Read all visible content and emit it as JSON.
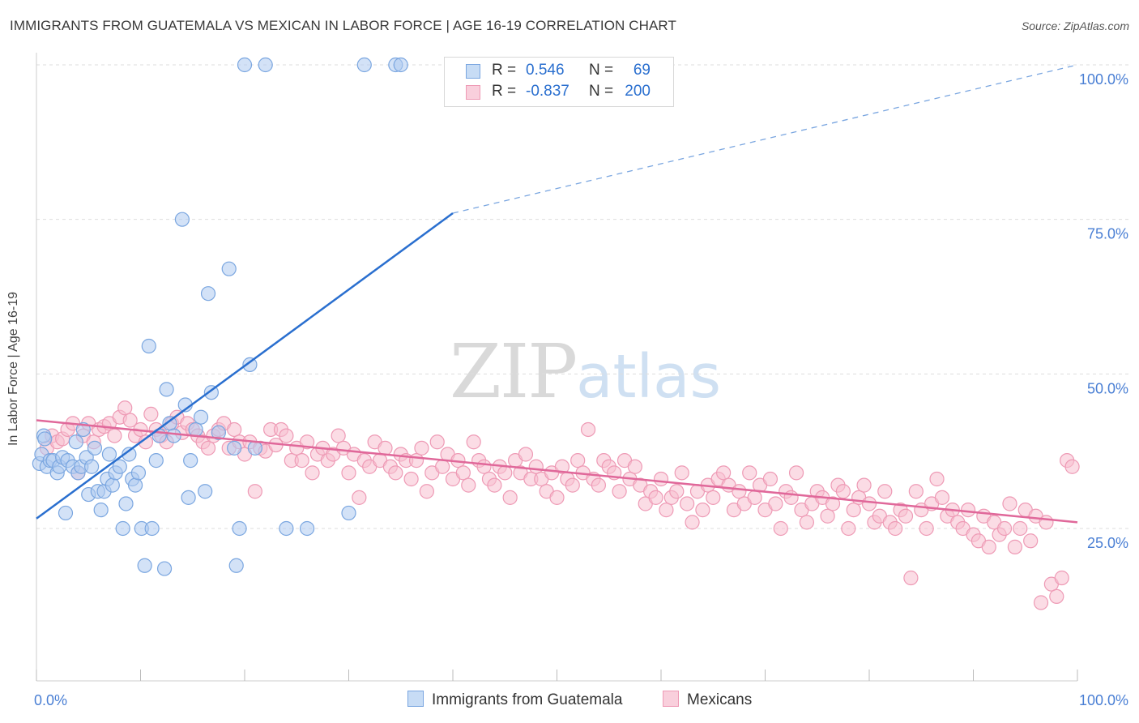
{
  "title": "IMMIGRANTS FROM GUATEMALA VS MEXICAN IN LABOR FORCE | AGE 16-19 CORRELATION CHART",
  "source": "Source: ZipAtlas.com",
  "watermark": {
    "zip": "ZIP",
    "atlas": "atlas"
  },
  "legend_top": [
    {
      "r_label": "R =",
      "r_value": "0.546",
      "n_label": "N =",
      "n_value": "69"
    },
    {
      "r_label": "R =",
      "r_value": "-0.837",
      "n_label": "N =",
      "n_value": "200"
    }
  ],
  "colors": {
    "blue_fill": "#aecbf0",
    "blue_stroke": "#7aa6e0",
    "blue_line": "#2a6fcf",
    "pink_fill": "#f7bfd0",
    "pink_stroke": "#ee9ab5",
    "pink_line": "#e0689a",
    "tick_text": "#4a7fd4",
    "grid": "#dddddd"
  },
  "chart_data": {
    "type": "scatter",
    "title": "IMMIGRANTS FROM GUATEMALA VS MEXICAN IN LABOR FORCE | AGE 16-19 CORRELATION CHART",
    "xlabel": "",
    "ylabel": "In Labor Force | Age 16-19",
    "xlim": [
      0,
      100
    ],
    "ylim": [
      0,
      105
    ],
    "x_tick_labels": [
      "0.0%",
      "100.0%"
    ],
    "y_ticks": [
      25,
      50,
      75,
      100
    ],
    "y_tick_labels": [
      "25.0%",
      "50.0%",
      "75.0%",
      "100.0%"
    ],
    "grid": true,
    "legend_position": "bottom",
    "series": [
      {
        "name": "Immigrants from Guatemala",
        "color": "#aecbf0",
        "r": 0.546,
        "n": 69,
        "trend": {
          "x": [
            0,
            40
          ],
          "y": [
            26.6,
            76
          ],
          "dashed_to": [
            100,
            100
          ]
        },
        "points": [
          [
            0.3,
            35.5
          ],
          [
            0.5,
            37
          ],
          [
            0.7,
            40
          ],
          [
            0.8,
            39.5
          ],
          [
            1,
            35
          ],
          [
            1.3,
            36
          ],
          [
            1.6,
            36
          ],
          [
            2,
            34
          ],
          [
            2.2,
            35
          ],
          [
            2.5,
            36.5
          ],
          [
            2.8,
            27.5
          ],
          [
            3,
            36
          ],
          [
            3.5,
            35
          ],
          [
            3.8,
            39
          ],
          [
            4,
            34
          ],
          [
            4.3,
            35
          ],
          [
            4.5,
            41
          ],
          [
            4.8,
            36.5
          ],
          [
            5,
            30.5
          ],
          [
            5.3,
            35
          ],
          [
            5.6,
            38
          ],
          [
            5.9,
            31
          ],
          [
            6.2,
            28
          ],
          [
            6.5,
            31
          ],
          [
            6.8,
            33
          ],
          [
            7,
            37
          ],
          [
            7.3,
            32
          ],
          [
            7.6,
            34
          ],
          [
            8,
            35
          ],
          [
            8.3,
            25
          ],
          [
            8.6,
            29
          ],
          [
            8.9,
            37
          ],
          [
            9.2,
            33
          ],
          [
            9.5,
            32
          ],
          [
            9.8,
            34
          ],
          [
            10.1,
            25
          ],
          [
            10.4,
            19
          ],
          [
            10.8,
            54.5
          ],
          [
            11.1,
            25
          ],
          [
            11.5,
            36
          ],
          [
            11.8,
            40
          ],
          [
            12.3,
            18.5
          ],
          [
            12.5,
            47.5
          ],
          [
            12.8,
            42
          ],
          [
            13.2,
            40
          ],
          [
            14,
            75
          ],
          [
            14.3,
            45
          ],
          [
            14.6,
            30
          ],
          [
            14.8,
            36
          ],
          [
            15.3,
            41
          ],
          [
            15.8,
            43
          ],
          [
            16.2,
            31
          ],
          [
            16.5,
            63
          ],
          [
            16.8,
            47
          ],
          [
            17.5,
            40.5
          ],
          [
            18.5,
            67
          ],
          [
            19,
            38
          ],
          [
            19.2,
            19
          ],
          [
            19.5,
            25
          ],
          [
            20,
            100
          ],
          [
            20.5,
            51.5
          ],
          [
            21,
            38
          ],
          [
            22,
            100
          ],
          [
            24,
            25
          ],
          [
            26,
            25
          ],
          [
            30,
            27.5
          ],
          [
            31.5,
            100
          ],
          [
            34.5,
            100
          ],
          [
            35,
            100
          ]
        ]
      },
      {
        "name": "Mexicans",
        "color": "#f7bfd0",
        "r": -0.837,
        "n": 200,
        "trend": {
          "x": [
            0,
            100
          ],
          "y": [
            42.5,
            26
          ]
        },
        "points": [
          [
            1,
            38
          ],
          [
            1.5,
            40
          ],
          [
            2,
            39
          ],
          [
            2.5,
            39.5
          ],
          [
            3,
            41
          ],
          [
            3.5,
            42
          ],
          [
            4,
            34
          ],
          [
            4.5,
            40
          ],
          [
            5,
            42
          ],
          [
            5.5,
            39
          ],
          [
            6,
            41
          ],
          [
            6.5,
            41.5
          ],
          [
            7,
            42
          ],
          [
            7.5,
            40
          ],
          [
            8,
            43
          ],
          [
            8.5,
            44.5
          ],
          [
            9,
            42.5
          ],
          [
            9.5,
            40
          ],
          [
            10,
            41
          ],
          [
            10.5,
            39
          ],
          [
            11,
            43.5
          ],
          [
            11.5,
            41
          ],
          [
            12,
            40
          ],
          [
            12.5,
            39
          ],
          [
            13,
            42
          ],
          [
            13.5,
            43
          ],
          [
            14,
            40.5
          ],
          [
            14.5,
            42
          ],
          [
            15,
            41
          ],
          [
            15.5,
            40
          ],
          [
            16,
            39
          ],
          [
            16.5,
            38
          ],
          [
            17,
            40
          ],
          [
            17.5,
            41
          ],
          [
            18,
            42
          ],
          [
            18.5,
            38
          ],
          [
            19,
            41
          ],
          [
            19.5,
            39
          ],
          [
            20,
            37
          ],
          [
            20.5,
            39
          ],
          [
            21,
            31
          ],
          [
            21.5,
            38
          ],
          [
            22,
            37.5
          ],
          [
            22.5,
            41
          ],
          [
            23,
            38.5
          ],
          [
            23.5,
            41
          ],
          [
            24,
            40
          ],
          [
            24.5,
            36
          ],
          [
            25,
            38
          ],
          [
            25.5,
            36
          ],
          [
            26,
            39
          ],
          [
            26.5,
            34
          ],
          [
            27,
            37
          ],
          [
            27.5,
            38
          ],
          [
            28,
            36
          ],
          [
            28.5,
            37
          ],
          [
            29,
            40
          ],
          [
            29.5,
            38
          ],
          [
            30,
            34
          ],
          [
            30.5,
            37
          ],
          [
            31,
            30
          ],
          [
            31.5,
            36
          ],
          [
            32,
            35
          ],
          [
            32.5,
            39
          ],
          [
            33,
            36
          ],
          [
            33.5,
            38
          ],
          [
            34,
            35
          ],
          [
            34.5,
            34
          ],
          [
            35,
            37
          ],
          [
            35.5,
            36
          ],
          [
            36,
            33
          ],
          [
            36.5,
            36
          ],
          [
            37,
            38
          ],
          [
            37.5,
            31
          ],
          [
            38,
            34
          ],
          [
            38.5,
            39
          ],
          [
            39,
            35
          ],
          [
            39.5,
            37
          ],
          [
            40,
            33
          ],
          [
            40.5,
            36
          ],
          [
            41,
            34
          ],
          [
            41.5,
            32
          ],
          [
            42,
            39
          ],
          [
            42.5,
            36
          ],
          [
            43,
            35
          ],
          [
            43.5,
            33
          ],
          [
            44,
            32
          ],
          [
            44.5,
            35
          ],
          [
            45,
            34
          ],
          [
            45.5,
            30
          ],
          [
            46,
            36
          ],
          [
            46.5,
            34
          ],
          [
            47,
            37
          ],
          [
            47.5,
            33
          ],
          [
            48,
            35
          ],
          [
            48.5,
            33
          ],
          [
            49,
            31
          ],
          [
            49.5,
            34
          ],
          [
            50,
            30
          ],
          [
            50.5,
            35
          ],
          [
            51,
            33
          ],
          [
            51.5,
            32
          ],
          [
            52,
            36
          ],
          [
            52.5,
            34
          ],
          [
            53,
            41
          ],
          [
            53.5,
            33
          ],
          [
            54,
            32
          ],
          [
            54.5,
            36
          ],
          [
            55,
            35
          ],
          [
            55.5,
            34
          ],
          [
            56,
            31
          ],
          [
            56.5,
            36
          ],
          [
            57,
            33
          ],
          [
            57.5,
            35
          ],
          [
            58,
            32
          ],
          [
            58.5,
            29
          ],
          [
            59,
            31
          ],
          [
            59.5,
            30
          ],
          [
            60,
            33
          ],
          [
            60.5,
            28
          ],
          [
            61,
            30
          ],
          [
            61.5,
            31
          ],
          [
            62,
            34
          ],
          [
            62.5,
            29
          ],
          [
            63,
            26
          ],
          [
            63.5,
            31
          ],
          [
            64,
            28
          ],
          [
            64.5,
            32
          ],
          [
            65,
            30
          ],
          [
            65.5,
            33
          ],
          [
            66,
            34
          ],
          [
            66.5,
            32
          ],
          [
            67,
            28
          ],
          [
            67.5,
            31
          ],
          [
            68,
            29
          ],
          [
            68.5,
            34
          ],
          [
            69,
            30
          ],
          [
            69.5,
            32
          ],
          [
            70,
            28
          ],
          [
            70.5,
            33
          ],
          [
            71,
            29
          ],
          [
            71.5,
            25
          ],
          [
            72,
            31
          ],
          [
            72.5,
            30
          ],
          [
            73,
            34
          ],
          [
            73.5,
            28
          ],
          [
            74,
            26
          ],
          [
            74.5,
            29
          ],
          [
            75,
            31
          ],
          [
            75.5,
            30
          ],
          [
            76,
            27
          ],
          [
            76.5,
            29
          ],
          [
            77,
            32
          ],
          [
            77.5,
            31
          ],
          [
            78,
            25
          ],
          [
            78.5,
            28
          ],
          [
            79,
            30
          ],
          [
            79.5,
            32
          ],
          [
            80,
            29
          ],
          [
            80.5,
            26
          ],
          [
            81,
            27
          ],
          [
            81.5,
            31
          ],
          [
            82,
            26
          ],
          [
            82.5,
            25
          ],
          [
            83,
            28
          ],
          [
            83.5,
            27
          ],
          [
            84,
            17
          ],
          [
            84.5,
            31
          ],
          [
            85,
            28
          ],
          [
            85.5,
            25
          ],
          [
            86,
            29
          ],
          [
            86.5,
            33
          ],
          [
            87,
            30
          ],
          [
            87.5,
            27
          ],
          [
            88,
            28
          ],
          [
            88.5,
            26
          ],
          [
            89,
            25
          ],
          [
            89.5,
            28
          ],
          [
            90,
            24
          ],
          [
            90.5,
            23
          ],
          [
            91,
            27
          ],
          [
            91.5,
            22
          ],
          [
            92,
            26
          ],
          [
            92.5,
            24
          ],
          [
            93,
            25
          ],
          [
            93.5,
            29
          ],
          [
            94,
            22
          ],
          [
            94.5,
            25
          ],
          [
            95,
            28
          ],
          [
            95.5,
            23
          ],
          [
            96,
            27
          ],
          [
            96.5,
            13
          ],
          [
            97,
            26
          ],
          [
            97.5,
            16
          ],
          [
            98,
            14
          ],
          [
            98.5,
            17
          ],
          [
            99,
            36
          ],
          [
            99.5,
            35
          ]
        ]
      }
    ]
  }
}
